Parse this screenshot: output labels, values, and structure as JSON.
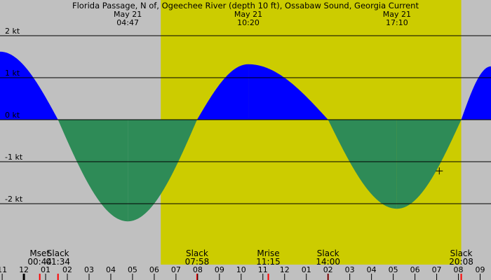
{
  "chart_data": {
    "type": "area",
    "title": "Florida Passage, N of, Ogeechee River (depth 10 ft), Ossabaw Sound, Georgia Current",
    "ylabel_unit": "kt",
    "ylim": [
      -3.0,
      2.9
    ],
    "yticks": [
      {
        "value": 2,
        "label": "2 kt"
      },
      {
        "value": 1,
        "label": "1 kt"
      },
      {
        "value": 0,
        "label": "0 kt"
      },
      {
        "value": -1,
        "label": "-1 kt"
      },
      {
        "value": -2,
        "label": "-2 kt"
      }
    ],
    "x_range_hours": [
      -1.1,
      21.5
    ],
    "x_tick_labels": [
      {
        "h": -1,
        "label": "11"
      },
      {
        "h": 0,
        "label": "12"
      },
      {
        "h": 1,
        "label": "01"
      },
      {
        "h": 2,
        "label": "02"
      },
      {
        "h": 3,
        "label": "03"
      },
      {
        "h": 4,
        "label": "04"
      },
      {
        "h": 5,
        "label": "05"
      },
      {
        "h": 6,
        "label": "06"
      },
      {
        "h": 7,
        "label": "07"
      },
      {
        "h": 8,
        "label": "08"
      },
      {
        "h": 9,
        "label": "09"
      },
      {
        "h": 10,
        "label": "10"
      },
      {
        "h": 11,
        "label": "11"
      },
      {
        "h": 12,
        "label": "12"
      },
      {
        "h": 13,
        "label": "01"
      },
      {
        "h": 14,
        "label": "02"
      },
      {
        "h": 15,
        "label": "03"
      },
      {
        "h": 16,
        "label": "04"
      },
      {
        "h": 17,
        "label": "05"
      },
      {
        "h": 18,
        "label": "06"
      },
      {
        "h": 19,
        "label": "07"
      },
      {
        "h": 20,
        "label": "08"
      },
      {
        "h": 21,
        "label": "09"
      }
    ],
    "daylight_hours": [
      6.3,
      20.13
    ],
    "series": [
      {
        "unit": "kt",
        "colors": {
          "flood": "#0000ff",
          "ebb": "#2e8b57"
        },
        "points": [
          {
            "h": -1.1,
            "kt": 1.62
          },
          {
            "h": 1.57,
            "kt": 0.0
          },
          {
            "h": 4.78,
            "kt": -2.42
          },
          {
            "h": 7.97,
            "kt": 0.0
          },
          {
            "h": 10.33,
            "kt": 1.32
          },
          {
            "h": 14.0,
            "kt": 0.0
          },
          {
            "h": 17.17,
            "kt": -2.12
          },
          {
            "h": 20.13,
            "kt": 0.0
          },
          {
            "h": 21.5,
            "kt": 1.27
          }
        ]
      }
    ],
    "peak_labels": [
      {
        "h": 4.78,
        "date": "May 21",
        "time": "04:47"
      },
      {
        "h": 10.33,
        "date": "May 21",
        "time": "10:20"
      },
      {
        "h": 17.17,
        "date": "May 21",
        "time": "17:10"
      }
    ],
    "events": [
      {
        "h": 0.73,
        "label": "Mset",
        "time": "00:44",
        "color": "#ff0000"
      },
      {
        "h": 1.57,
        "label": "Slack",
        "time": "01:34",
        "color": "#ff0000"
      },
      {
        "h": 7.97,
        "label": "Slack",
        "time": "07:58",
        "color": "#ff0000"
      },
      {
        "h": 11.25,
        "label": "Mrise",
        "time": "11:15",
        "color": "#ff0000"
      },
      {
        "h": 14.0,
        "label": "Slack",
        "time": "14:00",
        "color": "#ff0000"
      },
      {
        "h": 20.13,
        "label": "Slack",
        "time": "20:08",
        "color": "#ff0000"
      }
    ],
    "midnight_marker_h": 0,
    "crosshair": {
      "h": 19.12,
      "kt": -1.22
    },
    "colors": {
      "night_bg": "#c0c0c0",
      "day_bg": "#cccc00",
      "flood": "#0000ff",
      "ebb": "#2e8b57",
      "grid": "#000000",
      "event_tick": "#ff0000"
    }
  }
}
